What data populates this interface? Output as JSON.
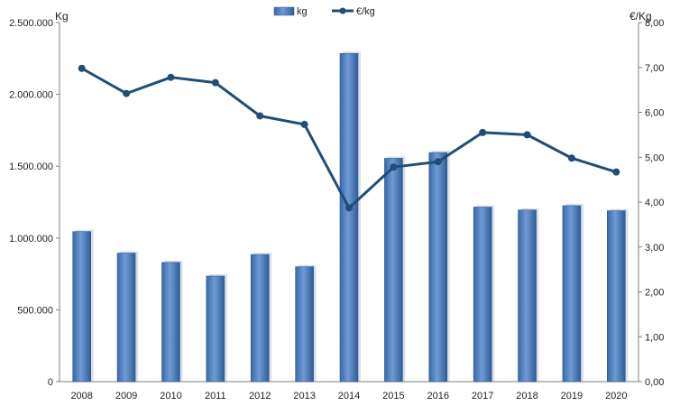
{
  "chart_data": {
    "type": "bar",
    "categories": [
      "2008",
      "2009",
      "2010",
      "2011",
      "2012",
      "2013",
      "2014",
      "2015",
      "2016",
      "2017",
      "2018",
      "2019",
      "2020"
    ],
    "series": [
      {
        "name": "kg",
        "type": "bar",
        "axis": "left",
        "values": [
          1045000,
          895000,
          830000,
          735000,
          885000,
          800000,
          2285000,
          1555000,
          1595000,
          1215000,
          1195000,
          1225000,
          1190000
        ]
      },
      {
        "name": "€/kg",
        "type": "line",
        "axis": "right",
        "values": [
          6.98,
          6.42,
          6.78,
          6.66,
          5.92,
          5.73,
          3.87,
          4.78,
          4.9,
          5.55,
          5.5,
          4.98,
          4.67
        ]
      }
    ],
    "ylabel": "Kg",
    "y2label": "€/Kg",
    "ylim": [
      0,
      2500000
    ],
    "y2lim": [
      0,
      8
    ],
    "yticks": [
      "0",
      "500.000",
      "1.000.000",
      "1.500.000",
      "2.000.000",
      "2.500.000"
    ],
    "y2ticks": [
      "0,00",
      "1,00",
      "2,00",
      "3,00",
      "4,00",
      "5,00",
      "6,00",
      "7,00",
      "8,00"
    ],
    "legend": "top-center",
    "grid": false
  },
  "colors": {
    "bar": "#4f81bd",
    "bar_dark": "#2d5a92",
    "line": "#1f4e79",
    "axis": "#7f7f7f"
  }
}
